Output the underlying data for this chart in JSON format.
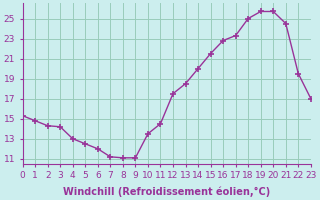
{
  "hours": [
    0,
    1,
    2,
    3,
    4,
    5,
    6,
    7,
    8,
    9,
    10,
    11,
    12,
    13,
    14,
    15,
    16,
    17,
    18,
    19,
    20,
    21,
    22,
    23
  ],
  "values": [
    15.3,
    14.8,
    14.3,
    14.2,
    13.0,
    12.5,
    12.0,
    11.2,
    11.1,
    11.1,
    13.5,
    14.5,
    17.5,
    18.5,
    20.0,
    21.5,
    22.8,
    23.3,
    25.0,
    25.7,
    25.7,
    24.5,
    19.5,
    17.0
  ],
  "xlim": [
    0,
    23
  ],
  "ylim": [
    10.5,
    26.5
  ],
  "yticks": [
    11,
    13,
    15,
    17,
    19,
    21,
    23,
    25
  ],
  "xticks": [
    0,
    1,
    2,
    3,
    4,
    5,
    6,
    7,
    8,
    9,
    10,
    11,
    12,
    13,
    14,
    15,
    16,
    17,
    18,
    19,
    20,
    21,
    22,
    23
  ],
  "xlabel": "Windchill (Refroidissement éolien,°C)",
  "line_color": "#993399",
  "marker": "+",
  "marker_size": 4,
  "marker_lw": 1.2,
  "bg_color": "#cceeee",
  "grid_color": "#99ccbb",
  "xlabel_fontsize": 7.0,
  "tick_fontsize": 6.5,
  "line_width": 1.0
}
